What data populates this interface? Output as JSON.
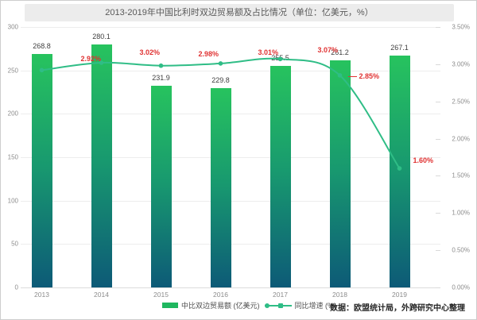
{
  "title": "2013-2019年中国比利时双边贸易额及占比情况（单位：亿美元，%）",
  "source_note": "数据：欧盟统计局，外跨研究中心整理",
  "legend": {
    "bar_label": "中比双边贸易额 (亿美元)",
    "line_label": "同比增速 (%)"
  },
  "colors": {
    "bar_top": "#27c35e",
    "bar_bottom": "#0d5a77",
    "line": "#2fbd86",
    "point_label_red": "#e03232",
    "title_bg": "#ececec"
  },
  "chart_data": {
    "type": "bar",
    "title": "2013-2019年中国比利时双边贸易额及占比情况（单位：亿美元，%）",
    "categories": [
      "2013",
      "2014",
      "2015",
      "2016",
      "2017",
      "2018",
      "2019"
    ],
    "series": [
      {
        "name": "中比双边贸易额 (亿美元)",
        "type": "bar",
        "axis": "left",
        "values": [
          268.8,
          280.1,
          231.9,
          229.8,
          255.5,
          261.2,
          267.1
        ],
        "labels": [
          "268.8",
          "280.1",
          "231.9",
          "229.8",
          "255.5",
          "261.2",
          "267.1"
        ]
      },
      {
        "name": "同比增速 (%)",
        "type": "line",
        "axis": "right",
        "values": [
          2.92,
          3.02,
          2.98,
          3.01,
          3.07,
          2.85,
          1.6
        ],
        "labels": [
          "2.92%",
          "3.02%",
          "2.98%",
          "3.01%",
          "3.07%",
          "2.85%",
          "1.60%"
        ]
      }
    ],
    "left_axis": {
      "min": 0,
      "max": 300,
      "tick_labels": [
        "300",
        "250",
        "200",
        "150",
        "100",
        "50",
        "0"
      ]
    },
    "right_axis": {
      "min": 0,
      "max": 3.5,
      "tick_labels": [
        "3.50%",
        "3.00%",
        "2.50%",
        "2.00%",
        "1.50%",
        "1.00%",
        "0.50%",
        "0.00%"
      ]
    },
    "grid": true,
    "legend_position": "bottom"
  }
}
